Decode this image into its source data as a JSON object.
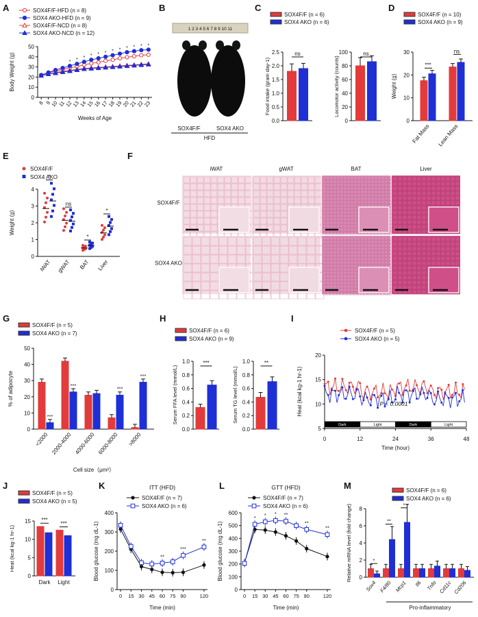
{
  "panels": {
    "A": {
      "letter": "A",
      "legend": [
        {
          "label": "SOX4F/F-HFD (n = 8)",
          "color": "#e33b3b",
          "marker": "circle-open"
        },
        {
          "label": "SOX4 AKO-HFD (n = 9)",
          "color": "#1e2fd6",
          "marker": "circle-filled"
        },
        {
          "label": "SOX4F/F-NCD (n = 8)",
          "color": "#e33b3b",
          "marker": "triangle-open"
        },
        {
          "label": "SOX4 AKO-NCD (n = 12)",
          "color": "#1e2fd6",
          "marker": "triangle-filled"
        }
      ],
      "ylabel": "Body Weight (g)",
      "xlabel": "Weeks of Age",
      "sig": "*"
    },
    "B": {
      "letter": "B",
      "label1": "SOX4F/F",
      "label2": "SOX4 AKO",
      "diet": "HFD",
      "ruler": "1 2 3 4 5 6 7 8 9 10 11"
    },
    "C": {
      "letter": "C",
      "legend": [
        "SOX4F/F (n = 6)",
        "SOX4 AKO (n = 6)"
      ],
      "ylabel1": "Food intake (gram day-1)",
      "ylabel2": "Locomotor activity (counts)",
      "ns": "ns"
    },
    "D": {
      "letter": "D",
      "legend": [
        "SOX4F/F (n = 10)",
        "SOX4 AKO (n = 9)"
      ],
      "ylabel": "Weight (g)",
      "cats": [
        "Fat Mass",
        "Lean Mass"
      ],
      "sig1": "***",
      "sig2": "ns"
    },
    "E": {
      "letter": "E",
      "legend": [
        "SOX4F/F",
        "SOX4 AKO"
      ],
      "ylabel": "Weight (g)",
      "cats": [
        "iWAT",
        "gWAT",
        "BAT",
        "Liver"
      ],
      "sigs": [
        "*",
        "ns",
        "*",
        "*"
      ]
    },
    "F": {
      "letter": "F",
      "cols": [
        "iWAT",
        "gWAT",
        "BAT",
        "Liver"
      ],
      "rows": [
        "SOX4F/F",
        "SOX4 AKO"
      ]
    },
    "G": {
      "letter": "G",
      "legend": [
        "SOX4F/F (n = 5)",
        "SOX4 AKO (n = 7)"
      ],
      "ylabel": "% of adipocyte",
      "xlabel": "Cell size（μm²）",
      "cats": [
        "<2000",
        "2000-4000",
        "4000-6000",
        "6000-8000",
        ">8000"
      ],
      "sigs": [
        "***",
        "***",
        "",
        "***",
        "***"
      ]
    },
    "H": {
      "letter": "H",
      "legend": [
        "SOX4F/F (n = 6)",
        "SOX4 AKO (n = 9)"
      ],
      "ylabel1": "Serum FFA level (mmol/L)",
      "ylabel2": "Serum TG level (mmol/L)",
      "sig1": "***",
      "sig2": "**"
    },
    "I": {
      "letter": "I",
      "legend": [
        "SOX4F/F (n = 5)",
        "SOX4 AKO (n = 5)"
      ],
      "ylabel": "Heat (kcal kg-1 hr-1)",
      "xlabel": "Time (hour)",
      "pval": "P < 0.0001",
      "bands": [
        "Dark",
        "Light",
        "Dark",
        "Light"
      ]
    },
    "J": {
      "letter": "J",
      "legend": [
        "SOX4F/F (n = 5)",
        "SOX4 AKO (n = 5)"
      ],
      "ylabel": "Heat (kcal kg-1 hr-1)",
      "cats": [
        "Dark",
        "Light"
      ],
      "sig": "***"
    },
    "K": {
      "letter": "K",
      "title": "ITT (HFD)",
      "legend": [
        "SOX4F/F (n = 7)",
        "SOX4 AKO (n = 6)"
      ],
      "ylabel": "Blood glucose (mg dL-1)",
      "xlabel": "Time (min)"
    },
    "L": {
      "letter": "L",
      "title": "GTT (HFD)",
      "legend": [
        "SOX4F/F (n = 7)",
        "SOX4 AKO (n = 6)"
      ],
      "ylabel": "Blood glucose (mg dL-1)",
      "xlabel": "Time (min)"
    },
    "M": {
      "letter": "M",
      "legend": [
        "SOX4F/F (n = 6)",
        "SOX4 AKO (n = 6)"
      ],
      "ylabel": "Relative mRNA level (fold change)",
      "cats": [
        "Sox4",
        "F4/80",
        "Mcp1",
        "Il6",
        "Tnfα",
        "Cd11c",
        "Cd206"
      ],
      "group": "Pro-inflammatory"
    }
  },
  "colors": {
    "red": "#e33b3b",
    "blue": "#1e2fd6",
    "black": "#111111"
  },
  "chart_data": [
    {
      "panel": "A",
      "type": "line",
      "x": [
        8,
        9,
        10,
        11,
        12,
        13,
        14,
        15,
        16,
        17,
        18,
        19,
        20,
        21,
        22,
        23
      ],
      "ylim": [
        0,
        50
      ],
      "yticks": [
        0,
        10,
        20,
        30,
        40,
        50
      ],
      "series": [
        {
          "name": "SOX4F/F-HFD (n = 8)",
          "values": [
            22,
            24,
            26,
            27.5,
            29,
            30.5,
            32,
            33.5,
            34.5,
            36,
            37,
            38.5,
            39.5,
            40.5,
            41.5,
            42
          ]
        },
        {
          "name": "SOX4 AKO-HFD (n = 9)",
          "values": [
            22,
            24.5,
            27,
            29,
            31,
            33,
            35,
            37,
            38.5,
            40,
            41.5,
            43,
            44.5,
            45.5,
            46.5,
            47
          ]
        },
        {
          "name": "SOX4F/F-NCD (n = 8)",
          "values": [
            21.5,
            23,
            24.5,
            25.5,
            26.5,
            27.5,
            28.5,
            29,
            29.5,
            30,
            30.5,
            31,
            31.5,
            32,
            32.5,
            33
          ]
        },
        {
          "name": "SOX4 AKO-NCD (n = 12)",
          "values": [
            21.5,
            23,
            24,
            25,
            26,
            27,
            28,
            28.5,
            29,
            29.5,
            30,
            30.5,
            31,
            31.5,
            32,
            32.5
          ]
        }
      ]
    },
    {
      "panel": "C1",
      "type": "bar",
      "categories": [
        "SOX4F/F",
        "SOX4 AKO"
      ],
      "values": [
        1.8,
        1.9
      ],
      "ylim": [
        0,
        2.5
      ],
      "yticks": [
        0,
        0.5,
        1.0,
        1.5,
        2.0,
        2.5
      ]
    },
    {
      "panel": "C2",
      "type": "bar",
      "categories": [
        "SOX4F/F",
        "SOX4 AKO"
      ],
      "values": [
        80,
        86
      ],
      "ylim": [
        0,
        100
      ],
      "yticks": [
        0,
        20,
        40,
        60,
        80,
        100
      ]
    },
    {
      "panel": "D",
      "type": "bar",
      "categories": [
        "Fat Mass",
        "Lean Mass"
      ],
      "series": [
        {
          "name": "SOX4F/F (n = 10)",
          "values": [
            17.5,
            23.5
          ]
        },
        {
          "name": "SOX4 AKO (n = 9)",
          "values": [
            20.5,
            25.5
          ]
        }
      ],
      "ylim": [
        0,
        30
      ],
      "yticks": [
        0,
        10,
        20,
        30
      ]
    },
    {
      "panel": "E",
      "type": "scatter",
      "categories": [
        "iWAT",
        "gWAT",
        "BAT",
        "Liver"
      ],
      "series": [
        {
          "name": "SOX4F/F",
          "values": [
            2.85,
            2.15,
            0.5,
            1.4
          ]
        },
        {
          "name": "SOX4 AKO",
          "values": [
            3.3,
            2.1,
            0.65,
            1.8
          ]
        }
      ],
      "ylim": [
        0,
        4
      ],
      "yticks": [
        0,
        1,
        2,
        3,
        4
      ]
    },
    {
      "panel": "G",
      "type": "bar",
      "categories": [
        "<2000",
        "2000-4000",
        "4000-6000",
        "6000-8000",
        ">8000"
      ],
      "series": [
        {
          "name": "SOX4F/F (n = 5)",
          "values": [
            29,
            42,
            21,
            7,
            1
          ]
        },
        {
          "name": "SOX4 AKO (n = 7)",
          "values": [
            4,
            23,
            22,
            21,
            29
          ]
        }
      ],
      "ylim": [
        0,
        50
      ],
      "yticks": [
        0,
        10,
        20,
        30,
        40,
        50
      ]
    },
    {
      "panel": "H1",
      "type": "bar",
      "categories": [
        "SOX4F/F",
        "SOX4 AKO"
      ],
      "values": [
        0.32,
        0.65
      ],
      "ylim": [
        0,
        1.0
      ],
      "yticks": [
        0,
        0.2,
        0.4,
        0.6,
        0.8,
        1.0
      ]
    },
    {
      "panel": "H2",
      "type": "bar",
      "categories": [
        "SOX4F/F",
        "SOX4 AKO"
      ],
      "values": [
        0.47,
        0.7
      ],
      "ylim": [
        0,
        1.0
      ],
      "yticks": [
        0,
        0.2,
        0.4,
        0.6,
        0.8,
        1.0
      ]
    },
    {
      "panel": "I",
      "type": "line",
      "xlim": [
        0,
        48
      ],
      "xticks": [
        0,
        12,
        24,
        36,
        48
      ],
      "ylim": [
        5,
        20
      ],
      "yticks": [
        5,
        10,
        15,
        20
      ],
      "series": [
        {
          "name": "SOX4F/F (n = 5)",
          "mean_dark": 13.5,
          "mean_light": 12.5
        },
        {
          "name": "SOX4 AKO (n = 5)",
          "mean_dark": 12.0,
          "mean_light": 11.0
        }
      ]
    },
    {
      "panel": "J",
      "type": "bar",
      "categories": [
        "Dark",
        "Light"
      ],
      "series": [
        {
          "name": "SOX4F/F (n = 5)",
          "values": [
            13.5,
            12.5
          ]
        },
        {
          "name": "SOX4 AKO (n = 5)",
          "values": [
            11.8,
            11.0
          ]
        }
      ],
      "ylim": [
        0,
        15
      ],
      "yticks": [
        0,
        5,
        10,
        15
      ]
    },
    {
      "panel": "K",
      "type": "line",
      "x": [
        0,
        15,
        30,
        45,
        60,
        75,
        90,
        120
      ],
      "ylim": [
        0,
        400
      ],
      "yticks": [
        0,
        100,
        200,
        300,
        400
      ],
      "series": [
        {
          "name": "SOX4F/F (n = 7)",
          "values": [
            315,
            210,
            120,
            105,
            90,
            88,
            90,
            128
          ]
        },
        {
          "name": "SOX4 AKO (n = 6)",
          "values": [
            335,
            225,
            140,
            133,
            138,
            145,
            178,
            222
          ]
        }
      ]
    },
    {
      "panel": "L",
      "type": "line",
      "x": [
        0,
        15,
        30,
        45,
        60,
        75,
        90,
        120
      ],
      "ylim": [
        0,
        600
      ],
      "yticks": [
        0,
        100,
        200,
        300,
        400,
        500,
        600
      ],
      "series": [
        {
          "name": "SOX4F/F (n = 7)",
          "values": [
            210,
            470,
            465,
            450,
            420,
            380,
            320,
            258
          ]
        },
        {
          "name": "SOX4 AKO (n = 6)",
          "values": [
            205,
            510,
            530,
            540,
            535,
            500,
            470,
            430
          ]
        }
      ]
    },
    {
      "panel": "M",
      "type": "bar",
      "categories": [
        "Sox4",
        "F4/80",
        "Mcp1",
        "Il6",
        "Tnfα",
        "Cd11c",
        "Cd206"
      ],
      "series": [
        {
          "name": "SOX4F/F (n = 6)",
          "values": [
            1,
            1,
            1,
            1,
            1,
            1,
            1
          ]
        },
        {
          "name": "SOX4 AKO (n = 6)",
          "values": [
            0.4,
            4.4,
            6.4,
            1.0,
            1.3,
            1.0,
            0.8
          ]
        }
      ],
      "ylim": [
        0,
        8
      ],
      "yticks": [
        0,
        2,
        4,
        6,
        8
      ]
    }
  ]
}
